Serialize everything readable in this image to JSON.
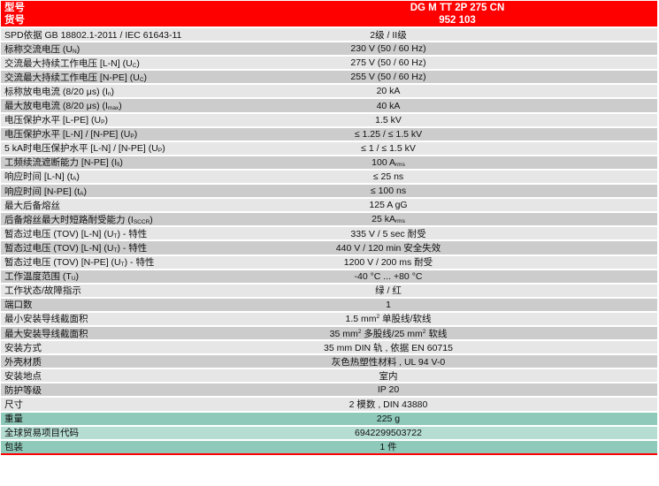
{
  "header": {
    "type_label": "型号",
    "type_value": "DG M TT 2P 275 CN",
    "order_label": "货号",
    "order_value": "952 103",
    "color": "#ff0000"
  },
  "colors": {
    "row_light": "#e6e6e6",
    "row_dark": "#cccccc",
    "green_dark": "#8fc9ba",
    "green_light": "#b5ddd2"
  },
  "rows": [
    {
      "label": [
        {
          "t": "SPD依据 GB 18802.1-2011 / IEC 61643-11"
        }
      ],
      "value": [
        {
          "t": "2级 / II级"
        }
      ],
      "style": "light"
    },
    {
      "label": [
        {
          "t": "标称交流电压 (U"
        },
        {
          "sub": "N"
        },
        {
          "t": ")"
        }
      ],
      "value": [
        {
          "t": "230 V (50 / 60 Hz)"
        }
      ],
      "style": "dark"
    },
    {
      "label": [
        {
          "t": "交流最大持续工作电压 [L-N] (U"
        },
        {
          "sub": "C"
        },
        {
          "t": ")"
        }
      ],
      "value": [
        {
          "t": "275 V (50 / 60 Hz)"
        }
      ],
      "style": "light"
    },
    {
      "label": [
        {
          "t": "交流最大持续工作电压 [N-PE] (U"
        },
        {
          "sub": "C"
        },
        {
          "t": ")"
        }
      ],
      "value": [
        {
          "t": "255 V (50 / 60 Hz)"
        }
      ],
      "style": "dark"
    },
    {
      "label": [
        {
          "t": "标称放电电流 (8/20 μs)  (I"
        },
        {
          "sub": "n"
        },
        {
          "t": ")"
        }
      ],
      "value": [
        {
          "t": "20 kA"
        }
      ],
      "style": "light"
    },
    {
      "label": [
        {
          "t": "最大放电电流 (8/20 μs) (I"
        },
        {
          "sub": "max"
        },
        {
          "t": ")"
        }
      ],
      "value": [
        {
          "t": "40 kA"
        }
      ],
      "style": "dark"
    },
    {
      "label": [
        {
          "t": "电压保护水平 [L-PE] (U"
        },
        {
          "sub": "P"
        },
        {
          "t": ")"
        }
      ],
      "value": [
        {
          "t": "1.5 kV"
        }
      ],
      "style": "light"
    },
    {
      "label": [
        {
          "t": "电压保护水平 [L-N] / [N-PE] (U"
        },
        {
          "sub": "P"
        },
        {
          "t": ")"
        }
      ],
      "value": [
        {
          "t": "≤ 1.25 / ≤ 1.5 kV"
        }
      ],
      "style": "dark"
    },
    {
      "label": [
        {
          "t": "5 kA时电压保护水平 [L-N] / [N-PE] (U"
        },
        {
          "sub": "P"
        },
        {
          "t": ")"
        }
      ],
      "value": [
        {
          "t": "≤ 1 / ≤ 1.5 kV"
        }
      ],
      "style": "light"
    },
    {
      "label": [
        {
          "t": "工频续流遮断能力 [N-PE]  (I"
        },
        {
          "sub": "fi"
        },
        {
          "t": ")"
        }
      ],
      "value": [
        {
          "t": "100 A"
        },
        {
          "sub": "rms"
        }
      ],
      "style": "dark"
    },
    {
      "label": [
        {
          "t": "响应时间 [L-N] (t"
        },
        {
          "sub": "A"
        },
        {
          "t": ")"
        }
      ],
      "value": [
        {
          "t": "≤ 25 ns"
        }
      ],
      "style": "light"
    },
    {
      "label": [
        {
          "t": "响应时间 [N-PE] (t"
        },
        {
          "sub": "A"
        },
        {
          "t": ")"
        }
      ],
      "value": [
        {
          "t": "≤ 100 ns"
        }
      ],
      "style": "dark"
    },
    {
      "label": [
        {
          "t": "最大后备熔丝"
        }
      ],
      "value": [
        {
          "t": "125 A gG"
        }
      ],
      "style": "light"
    },
    {
      "label": [
        {
          "t": "后备熔丝最大时短路耐受能力 (I"
        },
        {
          "sub": "SCCR"
        },
        {
          "t": ")"
        }
      ],
      "value": [
        {
          "t": "25 kA"
        },
        {
          "sub": "rms"
        }
      ],
      "style": "dark"
    },
    {
      "label": [
        {
          "t": "暂态过电压 (TOV) [L-N] (U"
        },
        {
          "sub": "T"
        },
        {
          "t": ") - 特性"
        }
      ],
      "value": [
        {
          "t": "335 V / 5 sec 耐受"
        }
      ],
      "style": "light"
    },
    {
      "label": [
        {
          "t": "暂态过电压 (TOV) [L-N] (U"
        },
        {
          "sub": "T"
        },
        {
          "t": ") - 特性"
        }
      ],
      "value": [
        {
          "t": "440 V / 120 min 安全失效"
        }
      ],
      "style": "dark"
    },
    {
      "label": [
        {
          "t": "暂态过电压 (TOV) [N-PE] (U"
        },
        {
          "sub": "T"
        },
        {
          "t": ") - 特性"
        }
      ],
      "value": [
        {
          "t": "1200 V / 200 ms 耐受"
        }
      ],
      "style": "light"
    },
    {
      "label": [
        {
          "t": "工作温度范围  (T"
        },
        {
          "sub": "U"
        },
        {
          "t": ")"
        }
      ],
      "value": [
        {
          "t": "-40 °C ... +80 °C"
        }
      ],
      "style": "dark"
    },
    {
      "label": [
        {
          "t": "工作状态/故障指示"
        }
      ],
      "value": [
        {
          "t": "绿 / 红"
        }
      ],
      "style": "light"
    },
    {
      "label": [
        {
          "t": "端口数"
        }
      ],
      "value": [
        {
          "t": "1"
        }
      ],
      "style": "dark"
    },
    {
      "label": [
        {
          "t": "最小安装导线截面积"
        }
      ],
      "value": [
        {
          "t": "1.5 mm"
        },
        {
          "sup": "2"
        },
        {
          "t": " 单股线/软线"
        }
      ],
      "style": "light"
    },
    {
      "label": [
        {
          "t": "最大安装导线截面积"
        }
      ],
      "value": [
        {
          "t": "35 mm"
        },
        {
          "sup": "2"
        },
        {
          "t": " 多股线/25 mm"
        },
        {
          "sup": "2"
        },
        {
          "t": " 软线"
        }
      ],
      "style": "dark"
    },
    {
      "label": [
        {
          "t": "安装方式"
        }
      ],
      "value": [
        {
          "t": "35 mm DIN 轨 , 依据 EN 60715"
        }
      ],
      "style": "light"
    },
    {
      "label": [
        {
          "t": "外壳材质"
        }
      ],
      "value": [
        {
          "t": "灰色热塑性材料 , UL 94 V-0"
        }
      ],
      "style": "dark"
    },
    {
      "label": [
        {
          "t": "安装地点"
        }
      ],
      "value": [
        {
          "t": "室内"
        }
      ],
      "style": "light"
    },
    {
      "label": [
        {
          "t": "防护等级"
        }
      ],
      "value": [
        {
          "t": "IP 20"
        }
      ],
      "style": "dark"
    },
    {
      "label": [
        {
          "t": "尺寸"
        }
      ],
      "value": [
        {
          "t": "2 模数 , DIN 43880"
        }
      ],
      "style": "light"
    },
    {
      "label": [
        {
          "t": "重量"
        }
      ],
      "value": [
        {
          "t": "225 g"
        }
      ],
      "style": "g1"
    },
    {
      "label": [
        {
          "t": "全球贸易项目代码"
        }
      ],
      "value": [
        {
          "t": "6942299503722"
        }
      ],
      "style": "g2"
    },
    {
      "label": [
        {
          "t": "包装"
        }
      ],
      "value": [
        {
          "t": "1 件"
        }
      ],
      "style": "g1"
    }
  ]
}
